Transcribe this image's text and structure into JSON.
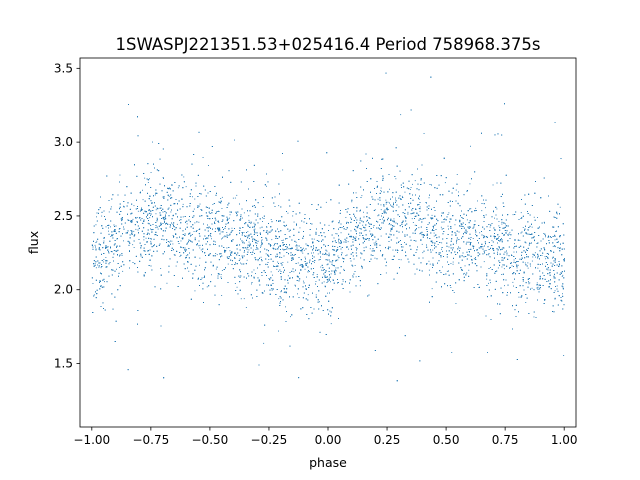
{
  "chart_data": {
    "type": "scatter",
    "title": "1SWASPJ221351.53+025416.4 Period 758968.375s",
    "xlabel": "phase",
    "ylabel": "flux",
    "xlim": [
      -1.05,
      1.05
    ],
    "ylim": [
      1.07,
      3.57
    ],
    "xticks": [
      -1.0,
      -0.75,
      -0.5,
      -0.25,
      0.0,
      0.25,
      0.5,
      0.75,
      1.0
    ],
    "xtick_labels": [
      "−1.00",
      "−0.75",
      "−0.50",
      "−0.25",
      "0.00",
      "0.25",
      "0.50",
      "0.75",
      "1.00"
    ],
    "yticks": [
      1.5,
      2.0,
      2.5,
      3.0,
      3.5
    ],
    "ytick_labels": [
      "1.5",
      "2.0",
      "2.5",
      "3.0",
      "3.5"
    ],
    "grid": false,
    "point_color": "#1f77b4",
    "phase_range": [
      -1.0,
      1.0
    ],
    "trend": {
      "phase": [
        0.0,
        0.05,
        0.1,
        0.15,
        0.2,
        0.25,
        0.3,
        0.35,
        0.4,
        0.45,
        0.5,
        0.55,
        0.6,
        0.65,
        0.7,
        0.75,
        0.8,
        0.85,
        0.9,
        0.95,
        1.0
      ],
      "flux": [
        2.18,
        2.25,
        2.33,
        2.4,
        2.45,
        2.47,
        2.48,
        2.46,
        2.43,
        2.4,
        2.38,
        2.36,
        2.34,
        2.32,
        2.3,
        2.28,
        2.25,
        2.22,
        2.2,
        2.19,
        2.18
      ],
      "scatter": [
        0.17,
        0.17,
        0.17,
        0.17,
        0.17,
        0.17,
        0.17,
        0.17,
        0.17,
        0.17,
        0.17,
        0.17,
        0.17,
        0.17,
        0.17,
        0.17,
        0.17,
        0.17,
        0.17,
        0.17,
        0.17
      ]
    }
  }
}
